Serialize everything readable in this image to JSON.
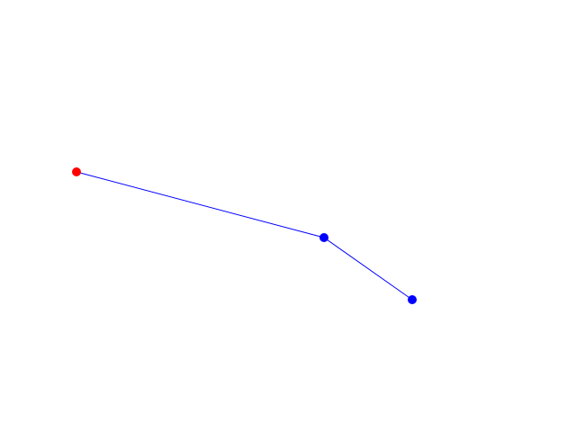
{
  "diagram": {
    "line_color": "#0000ff",
    "start_point_color": "#ff0000",
    "point_color": "#0000ff",
    "background_color": "#ffffff",
    "point_count": 3
  }
}
